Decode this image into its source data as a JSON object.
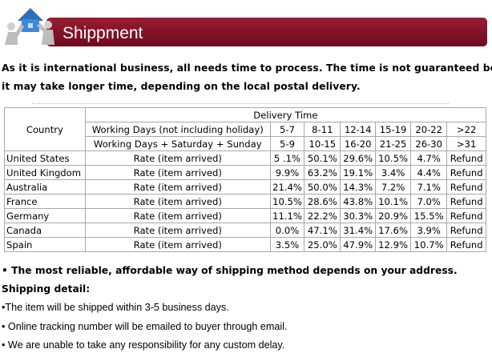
{
  "header": {
    "title": "Shippment"
  },
  "intro": {
    "lines": [
      "As it is international business, all needs time to process. The time is not guaranteed because",
      "it may take longer time, depending on the local postal delivery."
    ]
  },
  "table": {
    "country_header": "Country",
    "group_header": "Delivery Time",
    "day_rows": [
      {
        "label": "Working Days (not including holiday)",
        "ranges": [
          "5-7",
          "8-11",
          "12-14",
          "15-19",
          "20-22",
          ">22"
        ]
      },
      {
        "label": "Working Days + Saturday + Sunday",
        "ranges": [
          "5-9",
          "10-15",
          "16-20",
          "21-25",
          "26-30",
          ">31"
        ]
      }
    ],
    "rows": [
      {
        "country": "United States",
        "metric": "Rate (item arrived)",
        "values": [
          "5 .1%",
          "50.1%",
          "29.6%",
          "10.5%",
          "4.7%",
          "Refund"
        ]
      },
      {
        "country": "United Kingdom",
        "metric": "Rate (item arrived)",
        "values": [
          "9.9%",
          "63.2%",
          "19.1%",
          "3.4%",
          "4.4%",
          "Refund"
        ]
      },
      {
        "country": "Australia",
        "metric": "Rate (item arrived)",
        "values": [
          "21.4%",
          "50.0%",
          "14.3%",
          "7.2%",
          "7.1%",
          "Refund"
        ]
      },
      {
        "country": "France",
        "metric": "Rate (item arrived)",
        "values": [
          "10.5%",
          "28.6%",
          "43.8%",
          "10.1%",
          "7.0%",
          "Refund"
        ]
      },
      {
        "country": "Germany",
        "metric": "Rate (item arrived)",
        "values": [
          "11.1%",
          "22.2%",
          "30.3%",
          "20.9%",
          "15.5%",
          "Refund"
        ]
      },
      {
        "country": "Canada",
        "metric": "Rate (item arrived)",
        "values": [
          "0.0%",
          "47.1%",
          "31.4%",
          "17.6%",
          "3.9%",
          "Refund"
        ]
      },
      {
        "country": "Spain",
        "metric": "Rate (item arrived)",
        "values": [
          "3.5%",
          "25.0%",
          "47.9%",
          "12.9%",
          "10.7%",
          "Refund"
        ]
      }
    ]
  },
  "notes": {
    "bold_bullet": "• The most reliable, affordable way of shipping method depends on your address.",
    "detail_heading": "Shipping detail:",
    "details": [
      "•The item will be shipped within 3-5 business days.",
      "• Online tracking number will be emailed to buyer through email.",
      "• We are unable to take any responsibility for any custom delay."
    ]
  }
}
